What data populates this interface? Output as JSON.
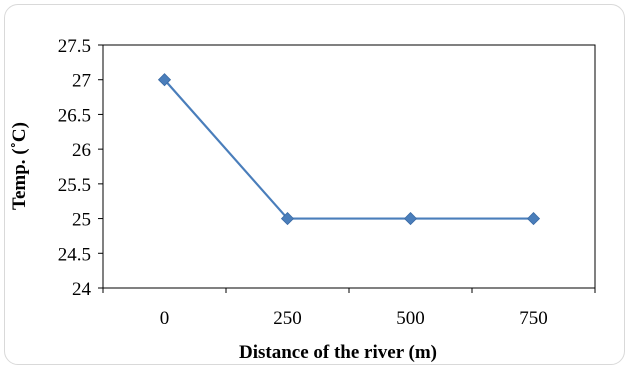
{
  "chart_data": {
    "type": "line",
    "title": "",
    "xlabel": "Distance of the river (m)",
    "ylabel": "Temp. (˚C)",
    "categories": [
      "0",
      "250",
      "500",
      "750"
    ],
    "series": [
      {
        "values": [
          27,
          25,
          25,
          25
        ]
      }
    ],
    "yticks": [
      "24",
      "24.5",
      "25",
      "25.5",
      "26",
      "26.5",
      "27",
      "27.5"
    ],
    "ylim": [
      24,
      27.5
    ],
    "grid": false,
    "legend": "none",
    "line_color": "#4a7ebb",
    "marker": "diamond"
  }
}
